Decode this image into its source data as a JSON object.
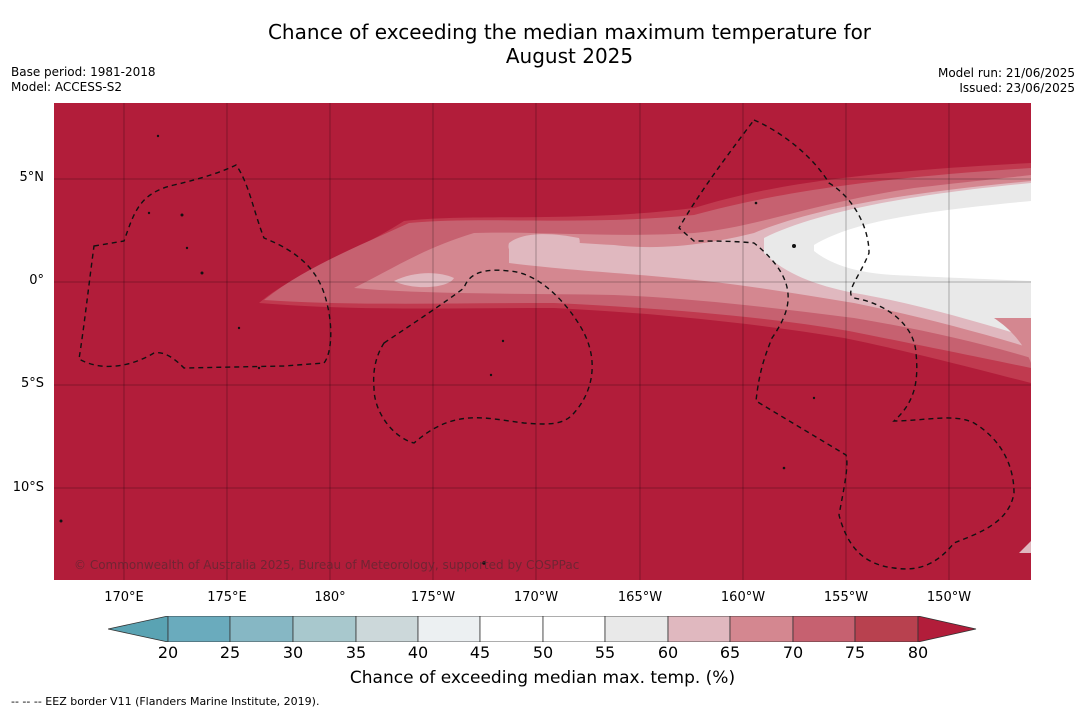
{
  "header": {
    "title_line1": "Chance of exceeding the median maximum temperature for",
    "title_line2": "August 2025",
    "base_period": "Base period: 1981-2018",
    "model": "Model: ACCESS-S2",
    "model_run": "Model run: 21/06/2025",
    "issued": "Issued: 23/06/2025"
  },
  "map": {
    "background_color": "#b21d3a",
    "copyright": "© Commonwealth of Australia 2025, Bureau of Meteorology, supported by COSPPac",
    "latitude_labels": [
      "5°N",
      "0°",
      "5°S",
      "10°S"
    ],
    "longitude_labels": [
      "170°E",
      "175°E",
      "180°",
      "175°W",
      "170°W",
      "165°W",
      "160°W",
      "155°W",
      "150°W"
    ],
    "border_style": "dashed"
  },
  "colorbar": {
    "ticks": [
      "20",
      "25",
      "30",
      "35",
      "40",
      "45",
      "50",
      "55",
      "60",
      "65",
      "70",
      "75",
      "80"
    ],
    "colors": [
      "#5aa3b3",
      "#6aabbd",
      "#86b7c4",
      "#a8c8cd",
      "#ccd8da",
      "#ecf0f2",
      "#ffffff",
      "#ffffff",
      "#e9e9e9",
      "#e0b8bf",
      "#d48790",
      "#c66170",
      "#b8414f",
      "#b21d3a"
    ],
    "label": "Chance of exceeding median max. temp. (%)"
  },
  "footer": {
    "legend": "--  --  -- EEZ border V11 (Flanders Marine Institute, 2019)."
  }
}
